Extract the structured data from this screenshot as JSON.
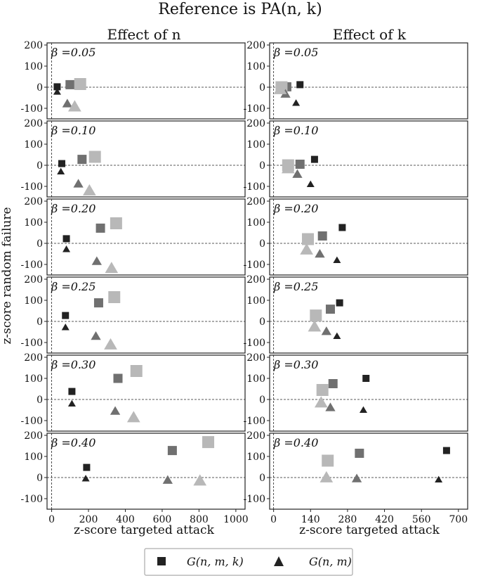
{
  "figure": {
    "title": "Reference is PA(n, k)",
    "ylabel": "z-score random failure",
    "legend": {
      "items": [
        {
          "marker": "square",
          "label": "G(n, m, k)"
        },
        {
          "marker": "triangle",
          "label": "G(n, m)"
        }
      ],
      "placement": "bottom-center"
    },
    "colors": {
      "dark": "#222222",
      "mid": "#707070",
      "light": "#b8b8b8"
    }
  },
  "chart_data": [
    {
      "type": "scatter",
      "column": "left",
      "title": "Effect of n",
      "xlabel": "z-score targeted attack",
      "xlim": [
        -25,
        1050
      ],
      "ylim": [
        -150,
        210
      ],
      "xticks": [
        0,
        200,
        400,
        600,
        800,
        1000
      ],
      "yticks": [
        -100,
        0,
        100,
        200
      ],
      "panels": [
        {
          "beta_label": "β =0.05",
          "points": [
            {
              "marker": "square",
              "shade": "dark",
              "x": 30,
              "y": 2
            },
            {
              "marker": "square",
              "shade": "mid",
              "x": 100,
              "y": 12
            },
            {
              "marker": "square",
              "shade": "light",
              "x": 155,
              "y": 15
            },
            {
              "marker": "triangle",
              "shade": "dark",
              "x": 30,
              "y": -22
            },
            {
              "marker": "triangle",
              "shade": "mid",
              "x": 85,
              "y": -78
            },
            {
              "marker": "triangle",
              "shade": "light",
              "x": 125,
              "y": -92
            }
          ]
        },
        {
          "beta_label": "β =0.10",
          "points": [
            {
              "marker": "square",
              "shade": "dark",
              "x": 55,
              "y": 8
            },
            {
              "marker": "square",
              "shade": "mid",
              "x": 165,
              "y": 28
            },
            {
              "marker": "square",
              "shade": "light",
              "x": 235,
              "y": 40
            },
            {
              "marker": "triangle",
              "shade": "dark",
              "x": 50,
              "y": -30
            },
            {
              "marker": "triangle",
              "shade": "mid",
              "x": 145,
              "y": -88
            },
            {
              "marker": "triangle",
              "shade": "light",
              "x": 205,
              "y": -120
            }
          ]
        },
        {
          "beta_label": "β =0.20",
          "points": [
            {
              "marker": "square",
              "shade": "dark",
              "x": 80,
              "y": 22
            },
            {
              "marker": "square",
              "shade": "mid",
              "x": 265,
              "y": 72
            },
            {
              "marker": "square",
              "shade": "light",
              "x": 350,
              "y": 95
            },
            {
              "marker": "triangle",
              "shade": "dark",
              "x": 80,
              "y": -28
            },
            {
              "marker": "triangle",
              "shade": "mid",
              "x": 245,
              "y": -85
            },
            {
              "marker": "triangle",
              "shade": "light",
              "x": 325,
              "y": -118
            }
          ]
        },
        {
          "beta_label": "β =0.25",
          "points": [
            {
              "marker": "square",
              "shade": "dark",
              "x": 75,
              "y": 28
            },
            {
              "marker": "square",
              "shade": "mid",
              "x": 255,
              "y": 88
            },
            {
              "marker": "square",
              "shade": "light",
              "x": 340,
              "y": 115
            },
            {
              "marker": "triangle",
              "shade": "dark",
              "x": 75,
              "y": -28
            },
            {
              "marker": "triangle",
              "shade": "mid",
              "x": 240,
              "y": -70
            },
            {
              "marker": "triangle",
              "shade": "light",
              "x": 320,
              "y": -110
            }
          ]
        },
        {
          "beta_label": "β =0.30",
          "points": [
            {
              "marker": "square",
              "shade": "dark",
              "x": 110,
              "y": 38
            },
            {
              "marker": "square",
              "shade": "mid",
              "x": 360,
              "y": 100
            },
            {
              "marker": "square",
              "shade": "light",
              "x": 460,
              "y": 135
            },
            {
              "marker": "triangle",
              "shade": "dark",
              "x": 110,
              "y": -20
            },
            {
              "marker": "triangle",
              "shade": "mid",
              "x": 345,
              "y": -55
            },
            {
              "marker": "triangle",
              "shade": "light",
              "x": 445,
              "y": -85
            }
          ]
        },
        {
          "beta_label": "β =0.40",
          "points": [
            {
              "marker": "square",
              "shade": "dark",
              "x": 190,
              "y": 48
            },
            {
              "marker": "square",
              "shade": "mid",
              "x": 655,
              "y": 128
            },
            {
              "marker": "square",
              "shade": "light",
              "x": 850,
              "y": 168
            },
            {
              "marker": "triangle",
              "shade": "dark",
              "x": 185,
              "y": -5
            },
            {
              "marker": "triangle",
              "shade": "mid",
              "x": 630,
              "y": -12
            },
            {
              "marker": "triangle",
              "shade": "light",
              "x": 805,
              "y": -15
            }
          ]
        }
      ]
    },
    {
      "type": "scatter",
      "column": "right",
      "title": "Effect of k",
      "xlabel": "z-score targeted attack",
      "xlim": [
        -15,
        735
      ],
      "ylim": [
        -150,
        210
      ],
      "xticks": [
        0,
        140,
        280,
        420,
        560,
        700
      ],
      "yticks": [
        -100,
        0,
        100,
        200
      ],
      "panels": [
        {
          "beta_label": "β =0.05",
          "points": [
            {
              "marker": "square",
              "shade": "dark",
              "x": 100,
              "y": 12
            },
            {
              "marker": "square",
              "shade": "mid",
              "x": 50,
              "y": 2
            },
            {
              "marker": "square",
              "shade": "light",
              "x": 30,
              "y": 0
            },
            {
              "marker": "triangle",
              "shade": "dark",
              "x": 85,
              "y": -75
            },
            {
              "marker": "triangle",
              "shade": "mid",
              "x": 45,
              "y": -32
            },
            {
              "marker": "triangle",
              "shade": "light",
              "x": 25,
              "y": -10
            }
          ]
        },
        {
          "beta_label": "β =0.10",
          "points": [
            {
              "marker": "square",
              "shade": "dark",
              "x": 155,
              "y": 28
            },
            {
              "marker": "square",
              "shade": "mid",
              "x": 100,
              "y": 5
            },
            {
              "marker": "square",
              "shade": "light",
              "x": 55,
              "y": 0
            },
            {
              "marker": "triangle",
              "shade": "dark",
              "x": 140,
              "y": -90
            },
            {
              "marker": "triangle",
              "shade": "mid",
              "x": 90,
              "y": -42
            },
            {
              "marker": "triangle",
              "shade": "light",
              "x": 55,
              "y": -15
            }
          ]
        },
        {
          "beta_label": "β =0.20",
          "points": [
            {
              "marker": "square",
              "shade": "dark",
              "x": 260,
              "y": 75
            },
            {
              "marker": "square",
              "shade": "mid",
              "x": 185,
              "y": 35
            },
            {
              "marker": "square",
              "shade": "light",
              "x": 130,
              "y": 20
            },
            {
              "marker": "triangle",
              "shade": "dark",
              "x": 240,
              "y": -80
            },
            {
              "marker": "triangle",
              "shade": "mid",
              "x": 175,
              "y": -50
            },
            {
              "marker": "triangle",
              "shade": "light",
              "x": 125,
              "y": -30
            }
          ]
        },
        {
          "beta_label": "β =0.25",
          "points": [
            {
              "marker": "square",
              "shade": "dark",
              "x": 250,
              "y": 88
            },
            {
              "marker": "square",
              "shade": "mid",
              "x": 215,
              "y": 58
            },
            {
              "marker": "square",
              "shade": "light",
              "x": 160,
              "y": 28
            },
            {
              "marker": "triangle",
              "shade": "dark",
              "x": 240,
              "y": -70
            },
            {
              "marker": "triangle",
              "shade": "mid",
              "x": 200,
              "y": -47
            },
            {
              "marker": "triangle",
              "shade": "light",
              "x": 155,
              "y": -25
            }
          ]
        },
        {
          "beta_label": "β =0.30",
          "points": [
            {
              "marker": "square",
              "shade": "dark",
              "x": 350,
              "y": 100
            },
            {
              "marker": "square",
              "shade": "mid",
              "x": 225,
              "y": 75
            },
            {
              "marker": "square",
              "shade": "light",
              "x": 185,
              "y": 45
            },
            {
              "marker": "triangle",
              "shade": "dark",
              "x": 340,
              "y": -50
            },
            {
              "marker": "triangle",
              "shade": "mid",
              "x": 215,
              "y": -38
            },
            {
              "marker": "triangle",
              "shade": "light",
              "x": 180,
              "y": -15
            }
          ]
        },
        {
          "beta_label": "β =0.40",
          "points": [
            {
              "marker": "square",
              "shade": "dark",
              "x": 655,
              "y": 128
            },
            {
              "marker": "square",
              "shade": "mid",
              "x": 325,
              "y": 115
            },
            {
              "marker": "square",
              "shade": "light",
              "x": 205,
              "y": 80
            },
            {
              "marker": "triangle",
              "shade": "dark",
              "x": 625,
              "y": -10
            },
            {
              "marker": "triangle",
              "shade": "mid",
              "x": 315,
              "y": -5
            },
            {
              "marker": "triangle",
              "shade": "light",
              "x": 200,
              "y": 0
            }
          ]
        }
      ]
    }
  ]
}
